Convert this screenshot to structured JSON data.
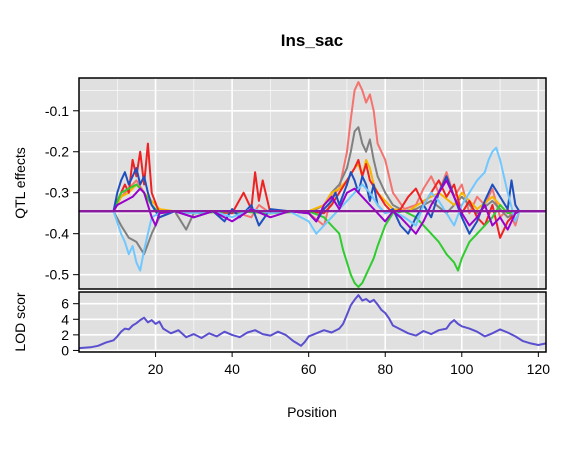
{
  "chart_data": [
    {
      "type": "line",
      "title": "Ins_sac",
      "xlabel": "",
      "ylabel": "QTL effects",
      "xlim": [
        0,
        122
      ],
      "ylim": [
        -0.535,
        -0.02
      ],
      "xticks": [],
      "yticks": [
        -0.1,
        -0.2,
        -0.3,
        -0.4,
        -0.5
      ],
      "ytick_labels": [
        "-0.1",
        "-0.2",
        "-0.3",
        "-0.4",
        "-0.5"
      ],
      "background": "#e0e0e0",
      "grid": true,
      "baseline": -0.345,
      "series": [
        {
          "color": "#f4736f",
          "x": [
            0,
            9,
            11,
            13,
            15,
            17,
            19,
            21,
            25,
            30,
            35,
            38,
            40,
            45,
            47,
            50,
            55,
            58,
            60,
            64,
            66,
            68,
            70,
            71,
            72,
            73,
            74,
            75,
            76,
            77,
            78,
            80,
            82,
            85,
            88,
            90,
            92,
            94,
            96,
            98,
            100,
            102,
            104,
            106,
            108,
            110,
            112,
            114,
            115,
            122
          ],
          "y": [
            -0.345,
            -0.345,
            -0.31,
            -0.29,
            -0.27,
            -0.3,
            -0.33,
            -0.35,
            -0.345,
            -0.35,
            -0.345,
            -0.35,
            -0.345,
            -0.36,
            -0.33,
            -0.35,
            -0.345,
            -0.345,
            -0.35,
            -0.38,
            -0.31,
            -0.29,
            -0.2,
            -0.12,
            -0.05,
            -0.03,
            -0.05,
            -0.08,
            -0.06,
            -0.1,
            -0.18,
            -0.22,
            -0.3,
            -0.34,
            -0.33,
            -0.29,
            -0.26,
            -0.3,
            -0.25,
            -0.31,
            -0.28,
            -0.35,
            -0.31,
            -0.33,
            -0.29,
            -0.36,
            -0.34,
            -0.38,
            -0.345,
            -0.345
          ]
        },
        {
          "color": "#808080",
          "x": [
            0,
            9,
            11,
            13,
            15,
            17,
            19,
            21,
            25,
            28,
            30,
            35,
            40,
            45,
            50,
            55,
            60,
            64,
            66,
            68,
            70,
            71,
            72,
            73,
            74,
            75,
            76,
            77,
            78,
            80,
            82,
            85,
            88,
            92,
            96,
            100,
            104,
            108,
            112,
            115,
            122
          ],
          "y": [
            -0.345,
            -0.345,
            -0.38,
            -0.41,
            -0.42,
            -0.45,
            -0.4,
            -0.36,
            -0.345,
            -0.39,
            -0.35,
            -0.345,
            -0.35,
            -0.345,
            -0.35,
            -0.345,
            -0.35,
            -0.33,
            -0.3,
            -0.28,
            -0.24,
            -0.2,
            -0.15,
            -0.14,
            -0.18,
            -0.2,
            -0.17,
            -0.22,
            -0.26,
            -0.3,
            -0.33,
            -0.345,
            -0.34,
            -0.32,
            -0.35,
            -0.31,
            -0.35,
            -0.32,
            -0.36,
            -0.345,
            -0.345
          ]
        },
        {
          "color": "#f7b500",
          "x": [
            0,
            9,
            11,
            13,
            15,
            17,
            19,
            21,
            25,
            30,
            40,
            50,
            60,
            64,
            66,
            68,
            70,
            72,
            73,
            74,
            75,
            76,
            77,
            78,
            80,
            82,
            86,
            90,
            94,
            98,
            100,
            104,
            108,
            112,
            115,
            122
          ],
          "y": [
            -0.345,
            -0.345,
            -0.31,
            -0.3,
            -0.28,
            -0.3,
            -0.32,
            -0.34,
            -0.345,
            -0.35,
            -0.345,
            -0.35,
            -0.345,
            -0.33,
            -0.3,
            -0.29,
            -0.27,
            -0.24,
            -0.23,
            -0.26,
            -0.22,
            -0.24,
            -0.28,
            -0.3,
            -0.32,
            -0.34,
            -0.345,
            -0.32,
            -0.3,
            -0.33,
            -0.3,
            -0.34,
            -0.31,
            -0.35,
            -0.345,
            -0.345
          ]
        },
        {
          "color": "#ee2222",
          "x": [
            0,
            9,
            10,
            12,
            13,
            14,
            15,
            16,
            17,
            18,
            19,
            21,
            25,
            30,
            35,
            40,
            43,
            45,
            46,
            47,
            48,
            50,
            55,
            60,
            64,
            66,
            68,
            70,
            72,
            73,
            74,
            75,
            76,
            78,
            80,
            82,
            84,
            86,
            88,
            90,
            92,
            94,
            96,
            98,
            100,
            102,
            104,
            106,
            108,
            110,
            112,
            114,
            115,
            122
          ],
          "y": [
            -0.345,
            -0.345,
            -0.32,
            -0.28,
            -0.3,
            -0.22,
            -0.26,
            -0.2,
            -0.28,
            -0.18,
            -0.3,
            -0.35,
            -0.345,
            -0.35,
            -0.345,
            -0.35,
            -0.3,
            -0.34,
            -0.25,
            -0.32,
            -0.27,
            -0.35,
            -0.345,
            -0.345,
            -0.35,
            -0.33,
            -0.3,
            -0.27,
            -0.24,
            -0.22,
            -0.26,
            -0.23,
            -0.27,
            -0.3,
            -0.33,
            -0.35,
            -0.34,
            -0.31,
            -0.29,
            -0.33,
            -0.3,
            -0.27,
            -0.31,
            -0.28,
            -0.35,
            -0.32,
            -0.36,
            -0.38,
            -0.33,
            -0.41,
            -0.37,
            -0.35,
            -0.345,
            -0.345
          ]
        },
        {
          "color": "#2ecc2e",
          "x": [
            0,
            9,
            11,
            13,
            15,
            17,
            19,
            21,
            25,
            30,
            40,
            50,
            60,
            64,
            66,
            68,
            69,
            70,
            71,
            72,
            73,
            74,
            75,
            76,
            77,
            78,
            80,
            82,
            85,
            88,
            92,
            94,
            96,
            98,
            99,
            100,
            102,
            104,
            106,
            108,
            110,
            112,
            115,
            122
          ],
          "y": [
            -0.345,
            -0.345,
            -0.3,
            -0.29,
            -0.28,
            -0.3,
            -0.33,
            -0.35,
            -0.345,
            -0.35,
            -0.345,
            -0.35,
            -0.345,
            -0.36,
            -0.38,
            -0.4,
            -0.44,
            -0.47,
            -0.5,
            -0.52,
            -0.53,
            -0.52,
            -0.5,
            -0.48,
            -0.46,
            -0.43,
            -0.38,
            -0.35,
            -0.345,
            -0.36,
            -0.4,
            -0.42,
            -0.45,
            -0.47,
            -0.49,
            -0.46,
            -0.42,
            -0.4,
            -0.38,
            -0.36,
            -0.33,
            -0.35,
            -0.345,
            -0.345
          ]
        },
        {
          "color": "#1f4fbf",
          "x": [
            0,
            9,
            10,
            11,
            12,
            13,
            14,
            15,
            16,
            17,
            18,
            19,
            21,
            25,
            30,
            35,
            38,
            40,
            42,
            45,
            47,
            50,
            55,
            60,
            62,
            64,
            66,
            67,
            68,
            70,
            71,
            72,
            73,
            74,
            75,
            76,
            77,
            78,
            80,
            82,
            84,
            86,
            88,
            90,
            92,
            94,
            96,
            98,
            100,
            102,
            104,
            106,
            108,
            110,
            112,
            113,
            114,
            115,
            122
          ],
          "y": [
            -0.345,
            -0.345,
            -0.3,
            -0.27,
            -0.25,
            -0.28,
            -0.26,
            -0.24,
            -0.28,
            -0.26,
            -0.3,
            -0.33,
            -0.36,
            -0.345,
            -0.36,
            -0.345,
            -0.37,
            -0.34,
            -0.36,
            -0.33,
            -0.38,
            -0.34,
            -0.345,
            -0.35,
            -0.37,
            -0.34,
            -0.32,
            -0.3,
            -0.33,
            -0.28,
            -0.25,
            -0.27,
            -0.3,
            -0.26,
            -0.28,
            -0.32,
            -0.28,
            -0.33,
            -0.35,
            -0.34,
            -0.38,
            -0.4,
            -0.36,
            -0.33,
            -0.36,
            -0.3,
            -0.26,
            -0.31,
            -0.36,
            -0.4,
            -0.37,
            -0.32,
            -0.28,
            -0.31,
            -0.34,
            -0.27,
            -0.33,
            -0.345,
            -0.345
          ]
        },
        {
          "color": "#70c8ff",
          "x": [
            0,
            9,
            11,
            12,
            13,
            14,
            15,
            16,
            17,
            18,
            19,
            21,
            25,
            30,
            35,
            40,
            45,
            50,
            55,
            60,
            62,
            64,
            66,
            68,
            70,
            72,
            74,
            76,
            78,
            80,
            82,
            85,
            88,
            90,
            92,
            94,
            96,
            98,
            100,
            102,
            104,
            106,
            107,
            108,
            109,
            110,
            111,
            112,
            114,
            115,
            122
          ],
          "y": [
            -0.345,
            -0.345,
            -0.4,
            -0.42,
            -0.45,
            -0.43,
            -0.47,
            -0.49,
            -0.44,
            -0.4,
            -0.36,
            -0.35,
            -0.345,
            -0.35,
            -0.345,
            -0.36,
            -0.34,
            -0.35,
            -0.345,
            -0.37,
            -0.4,
            -0.38,
            -0.36,
            -0.34,
            -0.32,
            -0.3,
            -0.28,
            -0.3,
            -0.33,
            -0.35,
            -0.345,
            -0.36,
            -0.38,
            -0.33,
            -0.3,
            -0.32,
            -0.35,
            -0.38,
            -0.33,
            -0.3,
            -0.27,
            -0.25,
            -0.22,
            -0.2,
            -0.19,
            -0.22,
            -0.26,
            -0.3,
            -0.37,
            -0.345,
            -0.345
          ]
        },
        {
          "color": "#9900cc",
          "x": [
            0,
            9,
            10,
            12,
            14,
            16,
            17,
            18,
            19,
            20,
            21,
            25,
            30,
            35,
            40,
            45,
            50,
            55,
            60,
            62,
            64,
            66,
            68,
            70,
            72,
            74,
            76,
            78,
            80,
            82,
            84,
            86,
            88,
            90,
            92,
            94,
            96,
            98,
            100,
            102,
            104,
            106,
            108,
            110,
            112,
            114,
            115,
            122
          ],
          "y": [
            -0.345,
            -0.345,
            -0.33,
            -0.32,
            -0.31,
            -0.29,
            -0.3,
            -0.33,
            -0.36,
            -0.38,
            -0.35,
            -0.345,
            -0.36,
            -0.345,
            -0.37,
            -0.34,
            -0.36,
            -0.345,
            -0.35,
            -0.37,
            -0.33,
            -0.31,
            -0.34,
            -0.3,
            -0.29,
            -0.31,
            -0.33,
            -0.35,
            -0.37,
            -0.345,
            -0.36,
            -0.38,
            -0.4,
            -0.37,
            -0.33,
            -0.3,
            -0.27,
            -0.31,
            -0.35,
            -0.38,
            -0.36,
            -0.33,
            -0.38,
            -0.36,
            -0.39,
            -0.35,
            -0.345,
            -0.345
          ]
        }
      ]
    },
    {
      "type": "line",
      "title": "",
      "xlabel": "Position",
      "ylabel": "LOD scor",
      "xlim": [
        0,
        122
      ],
      "ylim": [
        -0.2,
        7.5
      ],
      "xticks": [
        20,
        40,
        60,
        80,
        100,
        120
      ],
      "xtick_labels": [
        "20",
        "40",
        "60",
        "80",
        "100",
        "120"
      ],
      "yticks": [
        0,
        2,
        4,
        6
      ],
      "ytick_labels": [
        "0",
        "2",
        "4",
        "6"
      ],
      "background": "#e0e0e0",
      "grid": true,
      "series": [
        {
          "color": "#5a4fcf",
          "x": [
            0,
            3,
            5,
            7,
            9,
            10,
            11,
            12,
            13,
            14,
            15,
            16,
            17,
            18,
            19,
            20,
            21,
            22,
            24,
            26,
            28,
            30,
            32,
            34,
            36,
            38,
            40,
            42,
            44,
            46,
            48,
            50,
            52,
            54,
            56,
            57,
            58,
            59,
            60,
            62,
            64,
            66,
            68,
            69,
            70,
            71,
            72,
            73,
            74,
            75,
            76,
            77,
            78,
            79,
            80,
            81,
            82,
            84,
            86,
            88,
            90,
            92,
            94,
            96,
            97,
            98,
            99,
            100,
            102,
            104,
            106,
            108,
            110,
            112,
            114,
            116,
            118,
            120,
            122
          ],
          "y": [
            0.3,
            0.4,
            0.6,
            1.0,
            1.3,
            1.8,
            2.4,
            2.8,
            2.7,
            3.2,
            3.5,
            3.9,
            4.2,
            3.6,
            3.9,
            3.4,
            3.7,
            2.8,
            2.2,
            2.6,
            1.7,
            2.1,
            1.6,
            2.2,
            1.8,
            2.4,
            2.0,
            1.7,
            2.3,
            2.6,
            2.1,
            1.9,
            2.4,
            2.0,
            1.2,
            0.9,
            0.6,
            1.1,
            1.8,
            2.2,
            2.6,
            2.3,
            2.8,
            3.4,
            4.6,
            5.8,
            6.5,
            7.1,
            6.4,
            6.6,
            6.2,
            6.5,
            5.9,
            5.2,
            4.8,
            4.1,
            3.2,
            2.7,
            2.2,
            1.9,
            2.5,
            2.1,
            2.6,
            2.8,
            3.5,
            3.9,
            3.4,
            3.1,
            2.8,
            2.4,
            1.8,
            2.2,
            2.7,
            2.3,
            1.8,
            1.2,
            0.9,
            0.7,
            0.9
          ]
        }
      ]
    }
  ]
}
